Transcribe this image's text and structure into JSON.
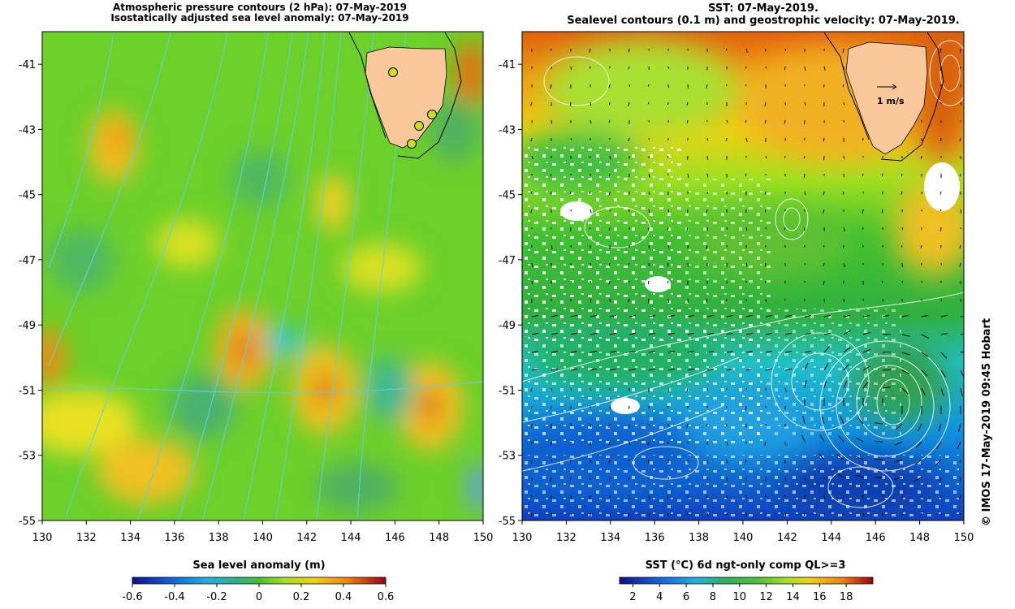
{
  "left_panel": {
    "title_line1": "Atmospheric pressure contours (2 hPa): 07-May-2019",
    "title_line2": "Isostatically adjusted sea level anomaly: 07-May-2019",
    "y_ticks": [
      "-41",
      "-43",
      "-45",
      "-47",
      "-49",
      "-51",
      "-53",
      "-55"
    ],
    "x_ticks": [
      "130",
      "132",
      "134",
      "136",
      "138",
      "140",
      "142",
      "144",
      "146",
      "148",
      "150"
    ],
    "colorbar": {
      "label": "Sea level anomaly (m)",
      "ticks": [
        "-0.6",
        "-0.4",
        "-0.2",
        "0",
        "0.2",
        "0.4",
        "0.6"
      ],
      "range": [
        -0.6,
        0.6
      ]
    },
    "land_color": "#f9c89a"
  },
  "right_panel": {
    "title_line1": "SST: 07-May-2019.",
    "title_line2": "Sealevel contours (0.1 m) and geostrophic velocity: 07-May-2019.",
    "y_ticks": [
      "-41",
      "-43",
      "-45",
      "-47",
      "-49",
      "-51",
      "-53",
      "-55"
    ],
    "x_ticks": [
      "130",
      "132",
      "134",
      "136",
      "138",
      "140",
      "142",
      "144",
      "146",
      "148",
      "150"
    ],
    "velocity_scale_label": "1 m/s",
    "colorbar": {
      "label": "SST (°C) 6d ngt-only comp QL>=3",
      "ticks": [
        "2",
        "4",
        "6",
        "8",
        "10",
        "12",
        "14",
        "16",
        "18"
      ],
      "range": [
        1,
        20
      ]
    },
    "land_color": "#f9c89a"
  },
  "copyright": "© IMOS 17-May-2019 09:45 Hobart",
  "extent": {
    "lon": [
      130,
      150
    ],
    "lat": [
      -55,
      -40
    ]
  }
}
